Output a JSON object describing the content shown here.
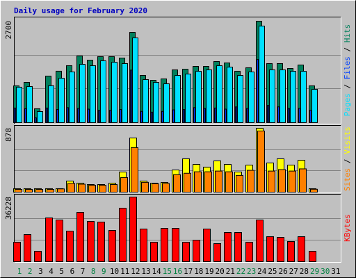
{
  "chart_data": [
    {
      "type": "bar",
      "title": "Daily usage for February 2020",
      "legend_separator": "/",
      "ylim": [
        0,
        2700
      ],
      "yticks": [
        2700
      ],
      "series": [
        {
          "name": "Hits",
          "color": "#00805c",
          "values": [
            980,
            1073,
            370,
            1240,
            1370,
            1516,
            1775,
            1664,
            1757,
            1757,
            1720,
            2404,
            1258,
            1128,
            1165,
            1405,
            1424,
            1498,
            1498,
            1627,
            1590,
            1369,
            1461,
            2700,
            1572,
            1572,
            1442,
            1535,
            980,
            null,
            null
          ]
        },
        {
          "name": "Files",
          "color": "#0040ff",
          "values": [
            390,
            370,
            130,
            390,
            350,
            400,
            380,
            360,
            330,
            330,
            350,
            1400,
            300,
            280,
            300,
            340,
            350,
            400,
            380,
            390,
            360,
            420,
            380,
            1680,
            460,
            420,
            380,
            380,
            330,
            null,
            null
          ]
        },
        {
          "name": "Pages",
          "color": "#00e0ff",
          "values": [
            944,
            962,
            296,
            981,
            1183,
            1350,
            1553,
            1516,
            1646,
            1609,
            1572,
            2256,
            1146,
            1072,
            1035,
            1257,
            1294,
            1368,
            1405,
            1516,
            1479,
            1257,
            1350,
            2571,
            1405,
            1405,
            1368,
            1368,
            888,
            null,
            null
          ]
        }
      ]
    },
    {
      "type": "bar",
      "legend_separator": "/",
      "ylim": [
        0,
        878
      ],
      "yticks": [
        878
      ],
      "series": [
        {
          "name": "Visits",
          "color": "#ffff00",
          "values": [
            48,
            48,
            48,
            48,
            48,
            153,
            124,
            105,
            105,
            124,
            277,
            744,
            153,
            124,
            134,
            305,
            458,
            382,
            344,
            430,
            382,
            277,
            372,
            878,
            401,
            458,
            372,
            439,
            48,
            null,
            null
          ]
        },
        {
          "name": "Sites",
          "color": "#ff8000",
          "values": [
            38,
            38,
            38,
            38,
            45,
            120,
            110,
            95,
            95,
            105,
            200,
            611,
            135,
            115,
            120,
            240,
            260,
            280,
            280,
            290,
            280,
            230,
            300,
            840,
            290,
            310,
            290,
            320,
            40,
            null,
            null
          ]
        }
      ]
    },
    {
      "type": "bar",
      "categories": [
        1,
        2,
        3,
        4,
        5,
        6,
        7,
        8,
        9,
        10,
        11,
        12,
        13,
        14,
        15,
        16,
        17,
        18,
        19,
        20,
        21,
        22,
        23,
        24,
        25,
        26,
        27,
        28,
        29,
        30,
        31
      ],
      "weekend_days": [
        1,
        2,
        8,
        9,
        15,
        16,
        22,
        23,
        29,
        30
      ],
      "weekend_color": "#008040",
      "ylim": [
        0,
        36228
      ],
      "yticks": [
        36228
      ],
      "series": [
        {
          "name": "KBytes",
          "color": "#ff0000",
          "values": [
            10907,
            15192,
            5843,
            24541,
            23373,
            17140,
            27658,
            22594,
            22205,
            17530,
            29995,
            36228,
            18309,
            10907,
            18699,
            18699,
            10907,
            12076,
            18309,
            10128,
            16361,
            16361,
            10907,
            23373,
            14024,
            13634,
            11297,
            14024,
            5843,
            null,
            null
          ]
        }
      ]
    }
  ]
}
